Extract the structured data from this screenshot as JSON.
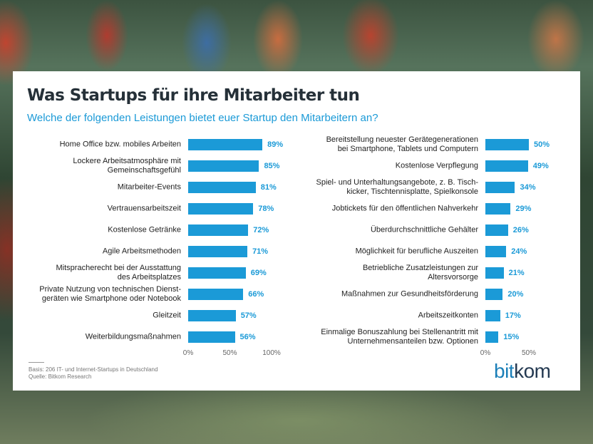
{
  "header": {
    "title": "Was Startups für ihre Mitarbeiter tun",
    "subtitle": "Welche der folgenden Leistungen bietet euer Startup den Mitarbeitern an?"
  },
  "chart_data": [
    {
      "type": "bar",
      "orientation": "horizontal",
      "color": "#1b9ad7",
      "categories": [
        "Home Office bzw. mobiles Arbeiten",
        "Lockere Arbeitsatmosphäre mit\nGemeinschaftsgefühl",
        "Mitarbeiter-Events",
        "Vertrauensarbeitszeit",
        "Kostenlose Getränke",
        "Agile Arbeitsmethoden",
        "Mitspracherecht bei der Ausstattung\ndes Arbeitsplatzes",
        "Private Nutzung von technischen Dienst-\ngeräten wie Smartphone oder Notebook",
        "Gleitzeit",
        "Weiterbildungsmaßnahmen"
      ],
      "values": [
        89,
        85,
        81,
        78,
        72,
        71,
        69,
        66,
        57,
        56
      ],
      "value_labels": [
        "89%",
        "85%",
        "81%",
        "78%",
        "72%",
        "71%",
        "69%",
        "66%",
        "57%",
        "56%"
      ],
      "xlim": [
        0,
        100
      ],
      "xticks": [
        {
          "value": 0,
          "label": "0%"
        },
        {
          "value": 50,
          "label": "50%"
        },
        {
          "value": 100,
          "label": "100%"
        }
      ]
    },
    {
      "type": "bar",
      "orientation": "horizontal",
      "color": "#1b9ad7",
      "categories": [
        "Bereitstellung neuester Gerätegenerationen\nbei Smartphone, Tablets und Computern",
        "Kostenlose Verpflegung",
        "Spiel- und Unterhaltungsangebote, z. B. Tisch-\nkicker, Tischtennisplatte, Spielkonsole",
        "Jobtickets für den öffentlichen Nahverkehr",
        "Überdurchschnittliche Gehälter",
        "Möglichkeit für berufliche Auszeiten",
        "Betriebliche Zusatzleistungen zur\nAltersvorsorge",
        "Maßnahmen zur Gesundheitsförderung",
        "Arbeitszeitkonten",
        "Einmalige Bonuszahlung bei Stellenantritt mit\nUnternehmensanteilen bzw. Optionen"
      ],
      "values": [
        50,
        49,
        34,
        29,
        26,
        24,
        21,
        20,
        17,
        15
      ],
      "value_labels": [
        "50%",
        "49%",
        "34%",
        "29%",
        "26%",
        "24%",
        "21%",
        "20%",
        "17%",
        "15%"
      ],
      "xlim": [
        0,
        50
      ],
      "xticks": [
        {
          "value": 0,
          "label": "0%"
        },
        {
          "value": 50,
          "label": "50%"
        }
      ]
    }
  ],
  "footer": {
    "notes": [
      "Basis: 206 IT- und Internet-Startups in Deutschland",
      "Quelle: Bitkom Research"
    ],
    "logo": [
      "bit",
      "kom"
    ]
  }
}
